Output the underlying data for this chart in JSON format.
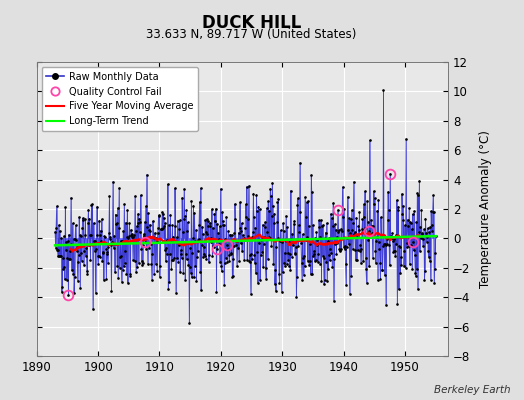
{
  "title": "DUCK HILL",
  "subtitle": "33.633 N, 89.717 W (United States)",
  "ylabel": "Temperature Anomaly (°C)",
  "credit": "Berkeley Earth",
  "xlim": [
    1890,
    1957
  ],
  "ylim": [
    -8,
    12
  ],
  "yticks": [
    -8,
    -6,
    -4,
    -2,
    0,
    2,
    4,
    6,
    8,
    10,
    12
  ],
  "xticks": [
    1890,
    1900,
    1910,
    1920,
    1930,
    1940,
    1950
  ],
  "fig_bg_color": "#e0e0e0",
  "plot_bg_color": "#e8e8e8",
  "seed": 42,
  "years_start": 1893.0,
  "years_end": 1955.0
}
